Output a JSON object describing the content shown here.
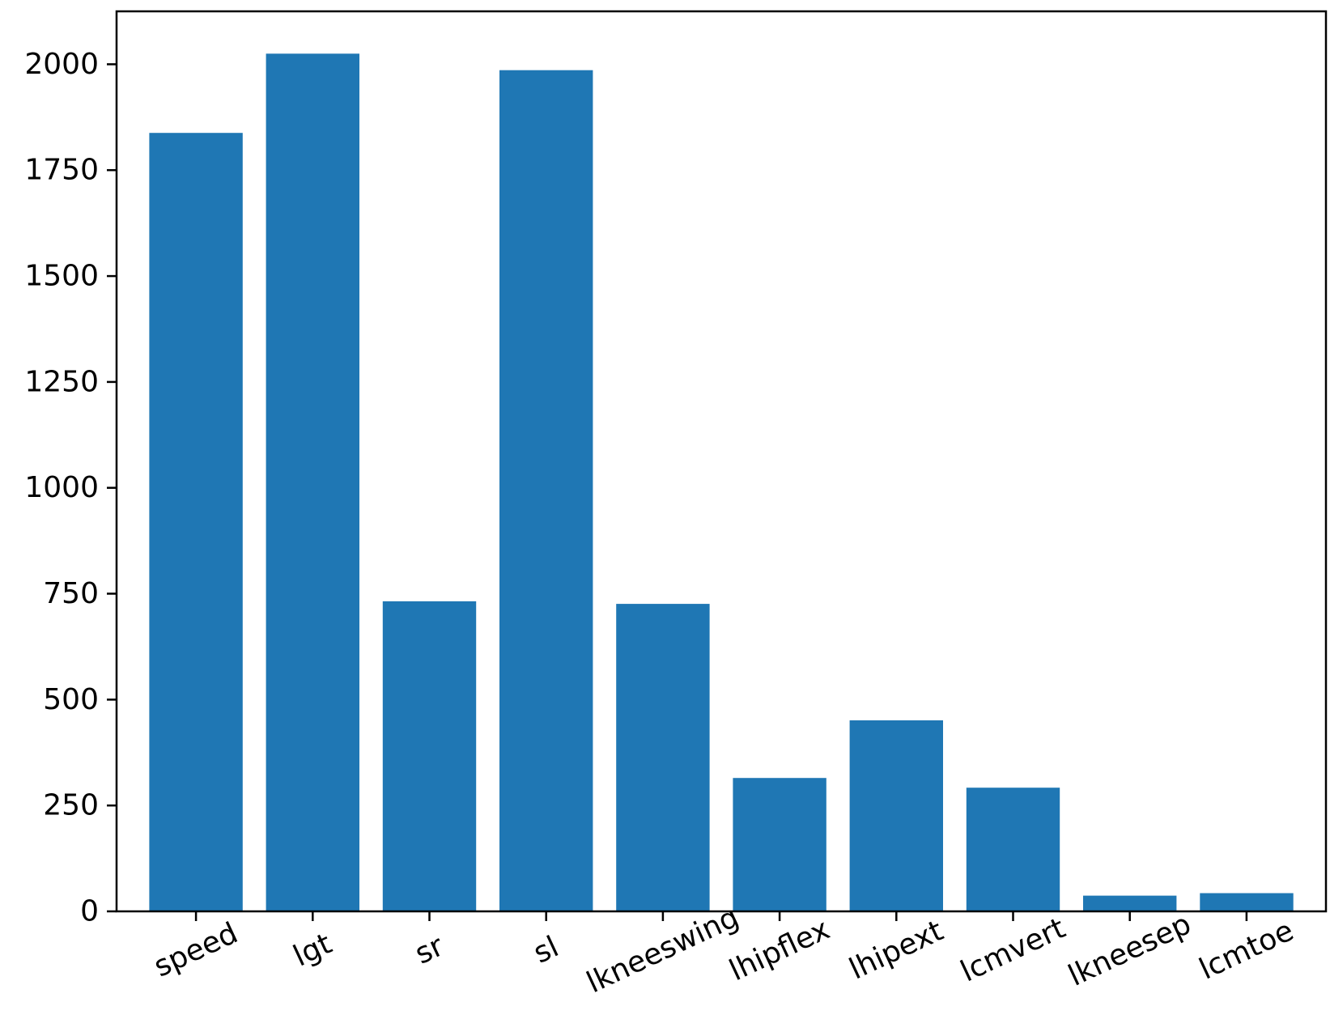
{
  "chart_data": {
    "type": "bar",
    "categories": [
      "speed",
      "lgt",
      "sr",
      "sl",
      "lkneeswing",
      "lhipflex",
      "lhipext",
      "lcmvert",
      "lkneesep",
      "lcmtoe"
    ],
    "values": [
      1838,
      2025,
      732,
      1986,
      726,
      315,
      451,
      292,
      37,
      43
    ],
    "title": "",
    "xlabel": "",
    "ylabel": "",
    "ylim": [
      0,
      2125
    ],
    "yticks": [
      0,
      250,
      500,
      750,
      1000,
      1250,
      1500,
      1750,
      2000
    ],
    "grid": false,
    "bar_color": "#1f77b4",
    "xtick_rotation_deg": -25
  }
}
